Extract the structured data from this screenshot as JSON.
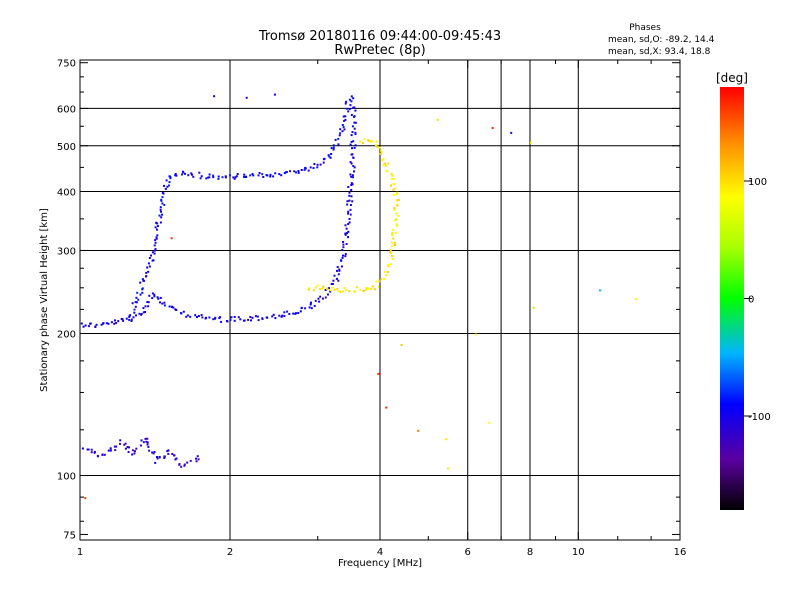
{
  "chart_data": {
    "type": "scatter",
    "title": "Tromsø 20180116 09:44:00-09:45:43",
    "subtitle": "RwPretec (8p)",
    "info": {
      "heading": "Phases",
      "line1": "mean, sd,O: -89.2, 14.4",
      "line2": "mean, sd,X:  93.4, 18.8"
    },
    "xlabel": "Frequency [MHz]",
    "ylabel": "Stationary phase Virtual Height [km]",
    "xscale": "log",
    "yscale": "log",
    "xlim": [
      1,
      16
    ],
    "ylim": [
      73,
      760
    ],
    "x_ticks": [
      1,
      2,
      4,
      6,
      8,
      10,
      16
    ],
    "x_tick_labels": [
      "1",
      "2",
      "4",
      "6",
      "8",
      "10",
      "16"
    ],
    "x_gridlines": [
      2,
      4,
      6,
      7,
      8,
      10
    ],
    "x_minor": [
      3,
      5,
      7,
      9,
      12,
      14
    ],
    "y_ticks": [
      75,
      100,
      200,
      300,
      400,
      500,
      600,
      750
    ],
    "y_tick_labels": [
      "75",
      "100",
      "200",
      "300",
      "400",
      "500",
      "600",
      "750"
    ],
    "y_gridlines": [
      100,
      200,
      300,
      400,
      500,
      600
    ],
    "grid": true,
    "colorbar": {
      "label": "[deg]",
      "min": -180,
      "max": 180,
      "ticks": [
        100,
        0,
        -100
      ],
      "tick_labels": [
        "100",
        "0",
        "-100"
      ]
    },
    "traces": [
      {
        "name": "",
        "phase": -100,
        "points": [
          [
            1.0,
            210
          ],
          [
            1.08,
            209
          ],
          [
            1.25,
            215
          ],
          [
            1.32,
            222
          ],
          [
            1.36,
            232
          ],
          [
            1.4,
            245
          ],
          [
            1.45,
            235
          ],
          [
            1.55,
            224
          ],
          [
            1.7,
            218
          ],
          [
            1.9,
            215
          ],
          [
            2.2,
            216
          ],
          [
            2.5,
            219
          ],
          [
            2.75,
            224
          ],
          [
            2.95,
            232
          ],
          [
            3.1,
            242
          ],
          [
            3.25,
            262
          ],
          [
            3.35,
            290
          ],
          [
            3.42,
            330
          ],
          [
            3.46,
            380
          ],
          [
            3.5,
            450
          ],
          [
            3.52,
            520
          ],
          [
            3.53,
            580
          ],
          [
            3.5,
            620
          ],
          [
            3.45,
            640
          ]
        ]
      },
      {
        "name": "",
        "phase": -95,
        "points": [
          [
            1.25,
            215
          ],
          [
            1.3,
            240
          ],
          [
            1.36,
            270
          ],
          [
            1.4,
            300
          ],
          [
            1.42,
            330
          ],
          [
            1.45,
            360
          ],
          [
            1.47,
            400
          ],
          [
            1.5,
            430
          ],
          [
            1.6,
            440
          ],
          [
            1.8,
            432
          ],
          [
            2.0,
            432
          ],
          [
            2.3,
            435
          ],
          [
            2.6,
            440
          ],
          [
            2.9,
            450
          ],
          [
            3.1,
            470
          ],
          [
            3.25,
            505
          ],
          [
            3.35,
            550
          ],
          [
            3.4,
            580
          ],
          [
            3.45,
            630
          ]
        ]
      },
      {
        "name": "",
        "phase": -110,
        "points": [
          [
            1.02,
            115
          ],
          [
            1.1,
            110
          ],
          [
            1.2,
            118
          ],
          [
            1.28,
            112
          ],
          [
            1.35,
            120
          ],
          [
            1.42,
            108
          ],
          [
            1.5,
            113
          ],
          [
            1.6,
            106
          ],
          [
            1.75,
            110
          ]
        ]
      },
      {
        "name": "",
        "phase": 95,
        "points": [
          [
            2.85,
            250
          ],
          [
            3.1,
            252
          ],
          [
            3.4,
            248
          ],
          [
            3.7,
            250
          ],
          [
            3.9,
            252
          ],
          [
            4.05,
            262
          ],
          [
            4.18,
            285
          ],
          [
            4.24,
            315
          ],
          [
            4.28,
            345
          ],
          [
            4.3,
            385
          ],
          [
            4.2,
            430
          ],
          [
            4.0,
            490
          ],
          [
            3.8,
            520
          ],
          [
            3.6,
            510
          ]
        ]
      }
    ],
    "outliers": [
      {
        "x": 1.02,
        "y": 90,
        "phase": 160
      },
      {
        "x": 1.85,
        "y": 640,
        "phase": -100
      },
      {
        "x": 2.15,
        "y": 635,
        "phase": -105
      },
      {
        "x": 2.45,
        "y": 645,
        "phase": -100
      },
      {
        "x": 1.52,
        "y": 320,
        "phase": 165
      },
      {
        "x": 3.95,
        "y": 165,
        "phase": 165
      },
      {
        "x": 4.1,
        "y": 140,
        "phase": 165
      },
      {
        "x": 4.4,
        "y": 190,
        "phase": 110
      },
      {
        "x": 4.75,
        "y": 125,
        "phase": 140
      },
      {
        "x": 5.2,
        "y": 570,
        "phase": 100
      },
      {
        "x": 5.4,
        "y": 120,
        "phase": 95
      },
      {
        "x": 5.45,
        "y": 104,
        "phase": 95
      },
      {
        "x": 6.2,
        "y": 200,
        "phase": 90
      },
      {
        "x": 6.6,
        "y": 130,
        "phase": 85
      },
      {
        "x": 6.7,
        "y": 548,
        "phase": 165
      },
      {
        "x": 7.3,
        "y": 535,
        "phase": -115
      },
      {
        "x": 8.0,
        "y": 510,
        "phase": 80
      },
      {
        "x": 8.1,
        "y": 228,
        "phase": 40
      },
      {
        "x": 11.0,
        "y": 248,
        "phase": -40
      },
      {
        "x": 13.0,
        "y": 238,
        "phase": 80
      }
    ]
  }
}
